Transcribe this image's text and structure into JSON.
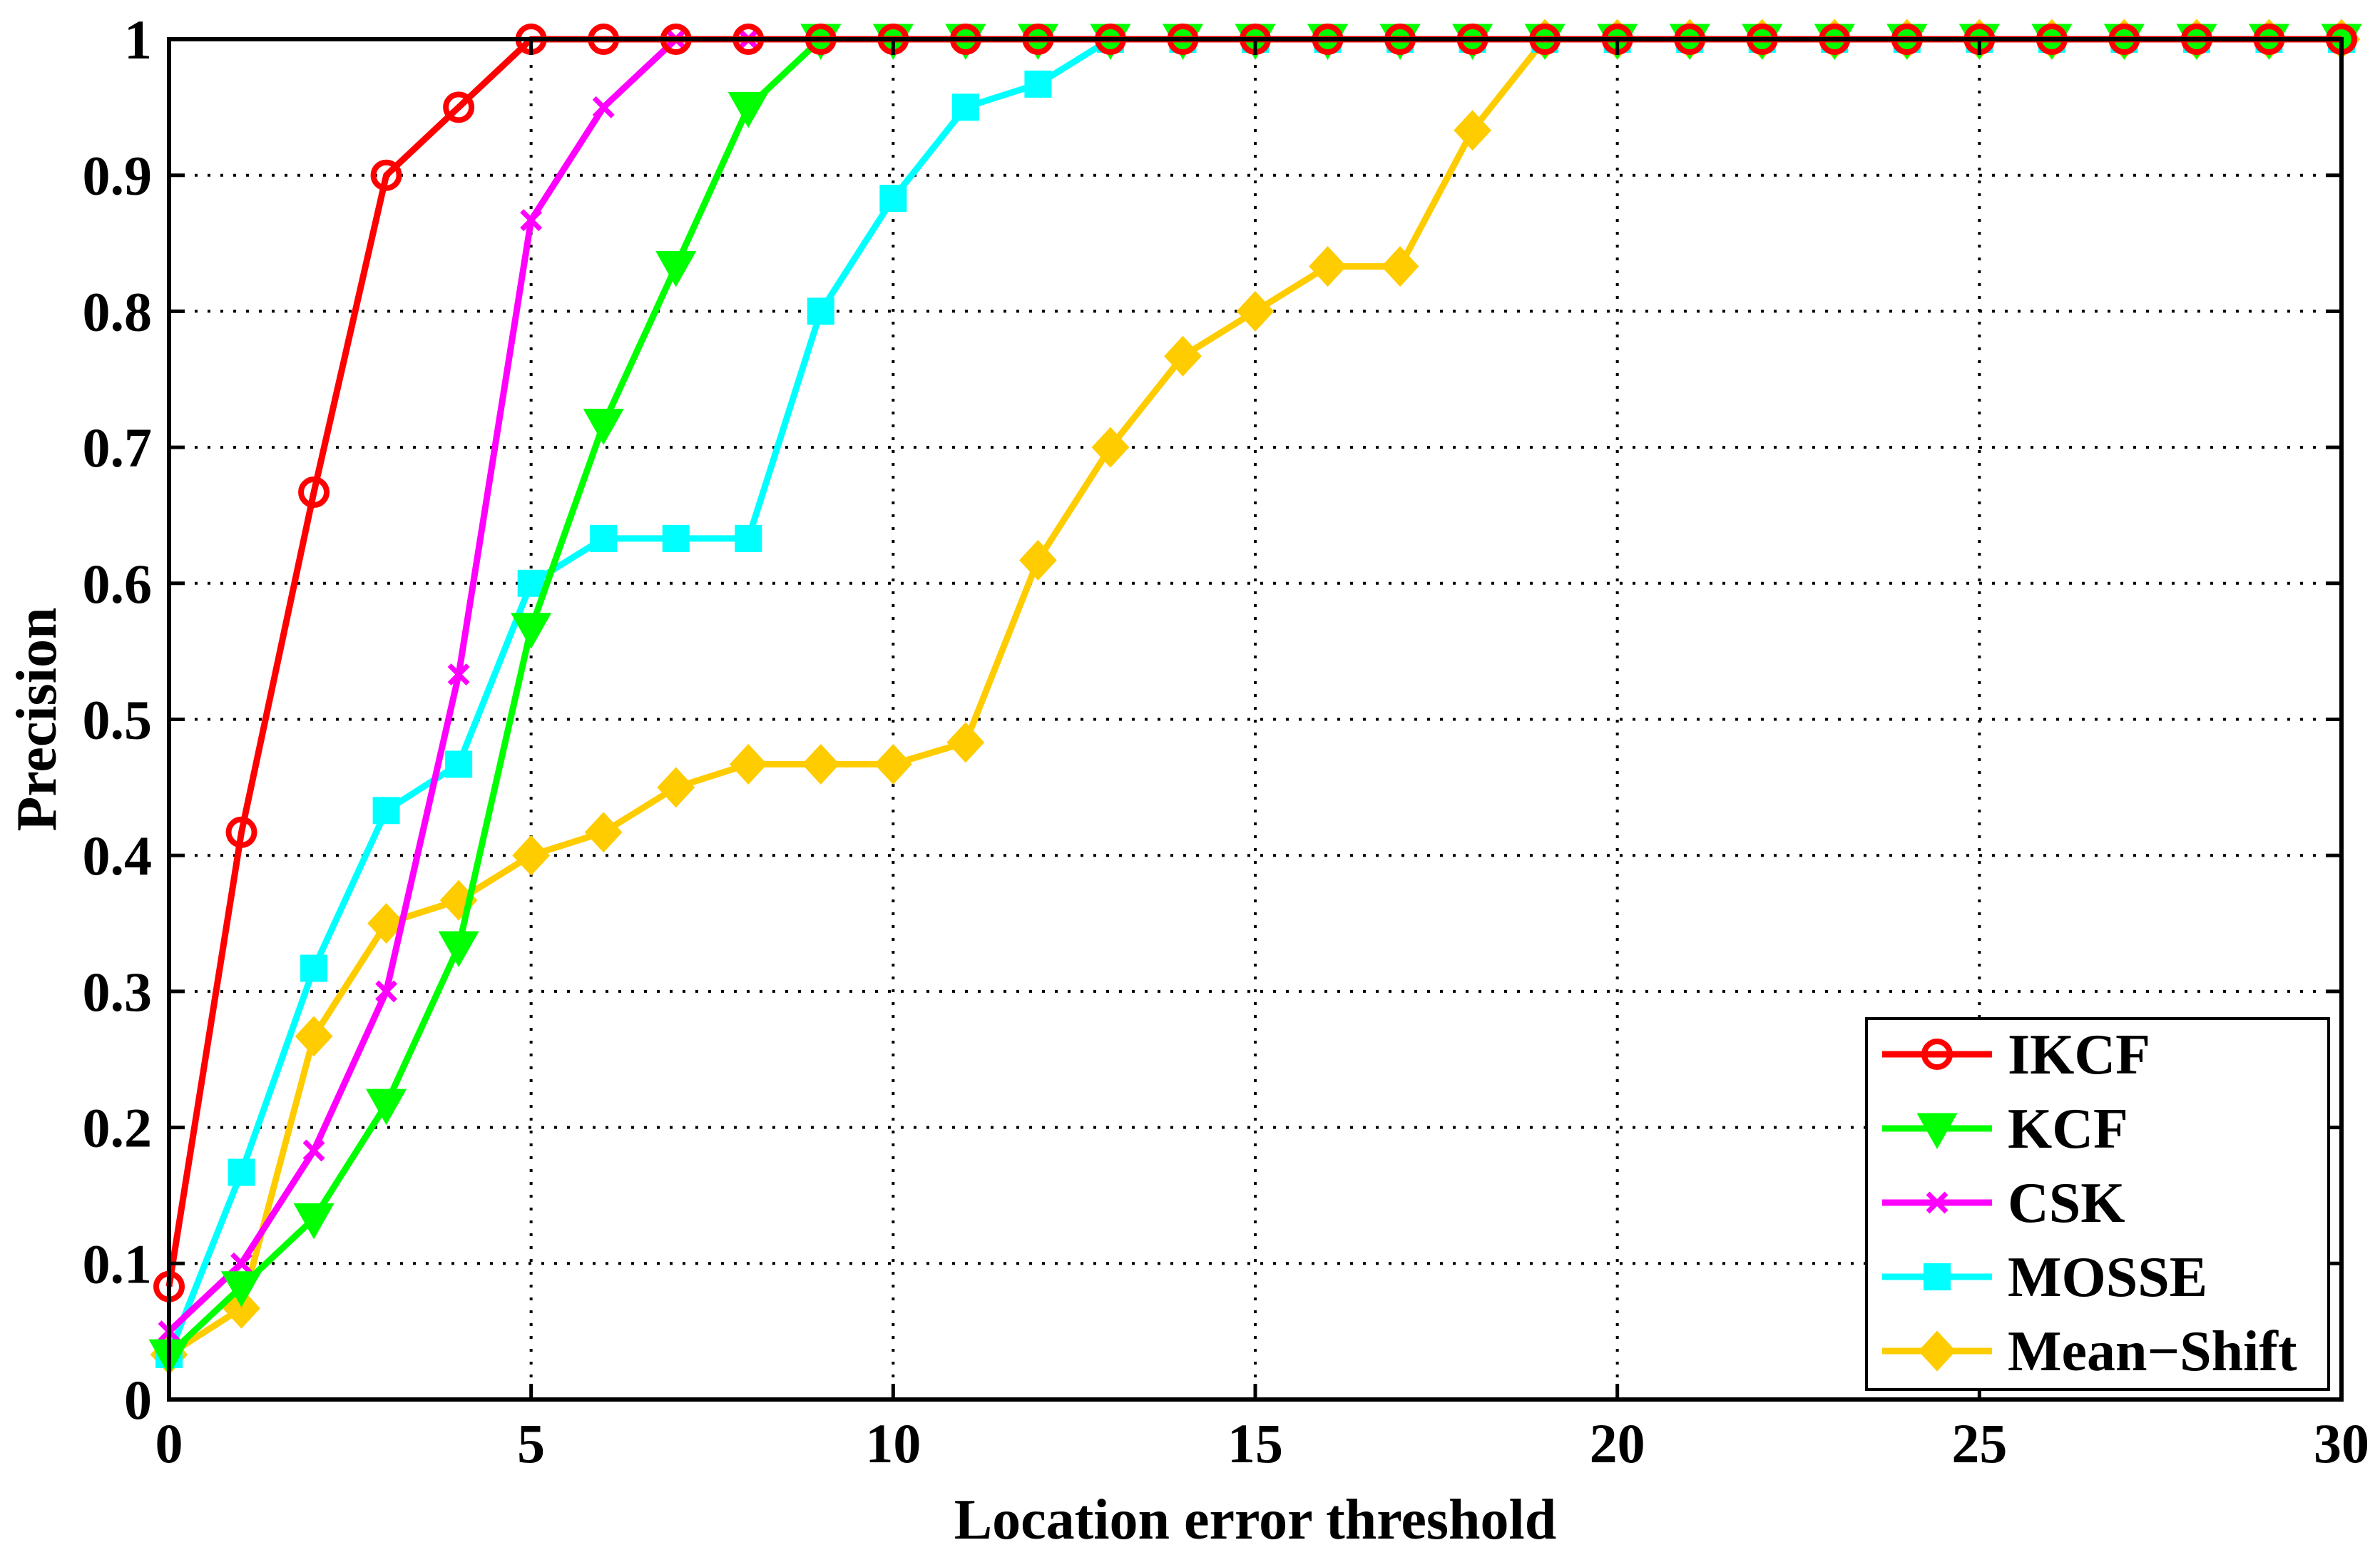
{
  "chart_data": {
    "type": "line",
    "title": "",
    "xlabel": "Location error threshold",
    "ylabel": "Precision",
    "xlim": [
      0,
      30
    ],
    "ylim": [
      0,
      1
    ],
    "xticks": [
      "0",
      "5",
      "10",
      "15",
      "20",
      "25",
      "30"
    ],
    "yticks": [
      "0",
      "0.1",
      "0.2",
      "0.3",
      "0.4",
      "0.5",
      "0.6",
      "0.7",
      "0.8",
      "0.9",
      "1"
    ],
    "grid": true,
    "legend_position": "bottom-right",
    "x": [
      0,
      1,
      2,
      3,
      4,
      5,
      6,
      7,
      8,
      9,
      10,
      11,
      12,
      13,
      14,
      15,
      16,
      17,
      18,
      19,
      20,
      21,
      22,
      23,
      24,
      25,
      26,
      27,
      28,
      29,
      30
    ],
    "series": [
      {
        "name": "IKCF",
        "color": "#ff0000",
        "marker": "circle",
        "values": [
          0.083,
          0.417,
          0.667,
          0.9,
          0.95,
          1,
          1,
          1,
          1,
          1,
          1,
          1,
          1,
          1,
          1,
          1,
          1,
          1,
          1,
          1,
          1,
          1,
          1,
          1,
          1,
          1,
          1,
          1,
          1,
          1,
          1
        ]
      },
      {
        "name": "KCF",
        "color": "#00ff00",
        "marker": "triangle-down",
        "values": [
          0.033,
          0.083,
          0.133,
          0.217,
          0.333,
          0.567,
          0.717,
          0.833,
          0.95,
          1,
          1,
          1,
          1,
          1,
          1,
          1,
          1,
          1,
          1,
          1,
          1,
          1,
          1,
          1,
          1,
          1,
          1,
          1,
          1,
          1,
          1
        ]
      },
      {
        "name": "CSK",
        "color": "#ff00ff",
        "marker": "x",
        "values": [
          0.05,
          0.1,
          0.183,
          0.3,
          0.533,
          0.867,
          0.95,
          1,
          1,
          1,
          1,
          1,
          1,
          1,
          1,
          1,
          1,
          1,
          1,
          1,
          1,
          1,
          1,
          1,
          1,
          1,
          1,
          1,
          1,
          1,
          1
        ]
      },
      {
        "name": "MOSSE",
        "color": "#00ffff",
        "marker": "square",
        "values": [
          0.033,
          0.167,
          0.317,
          0.433,
          0.467,
          0.6,
          0.633,
          0.633,
          0.633,
          0.8,
          0.883,
          0.95,
          0.967,
          1,
          1,
          1,
          1,
          1,
          1,
          1,
          1,
          1,
          1,
          1,
          1,
          1,
          1,
          1,
          1,
          1,
          1
        ]
      },
      {
        "name": "Mean−Shift",
        "color": "#ffcc00",
        "marker": "diamond",
        "values": [
          0.033,
          0.067,
          0.267,
          0.35,
          0.367,
          0.4,
          0.417,
          0.45,
          0.467,
          0.467,
          0.467,
          0.483,
          0.617,
          0.7,
          0.767,
          0.8,
          0.833,
          0.833,
          0.933,
          1,
          1,
          1,
          1,
          1,
          1,
          1,
          1,
          1,
          1,
          1,
          1
        ]
      }
    ]
  }
}
